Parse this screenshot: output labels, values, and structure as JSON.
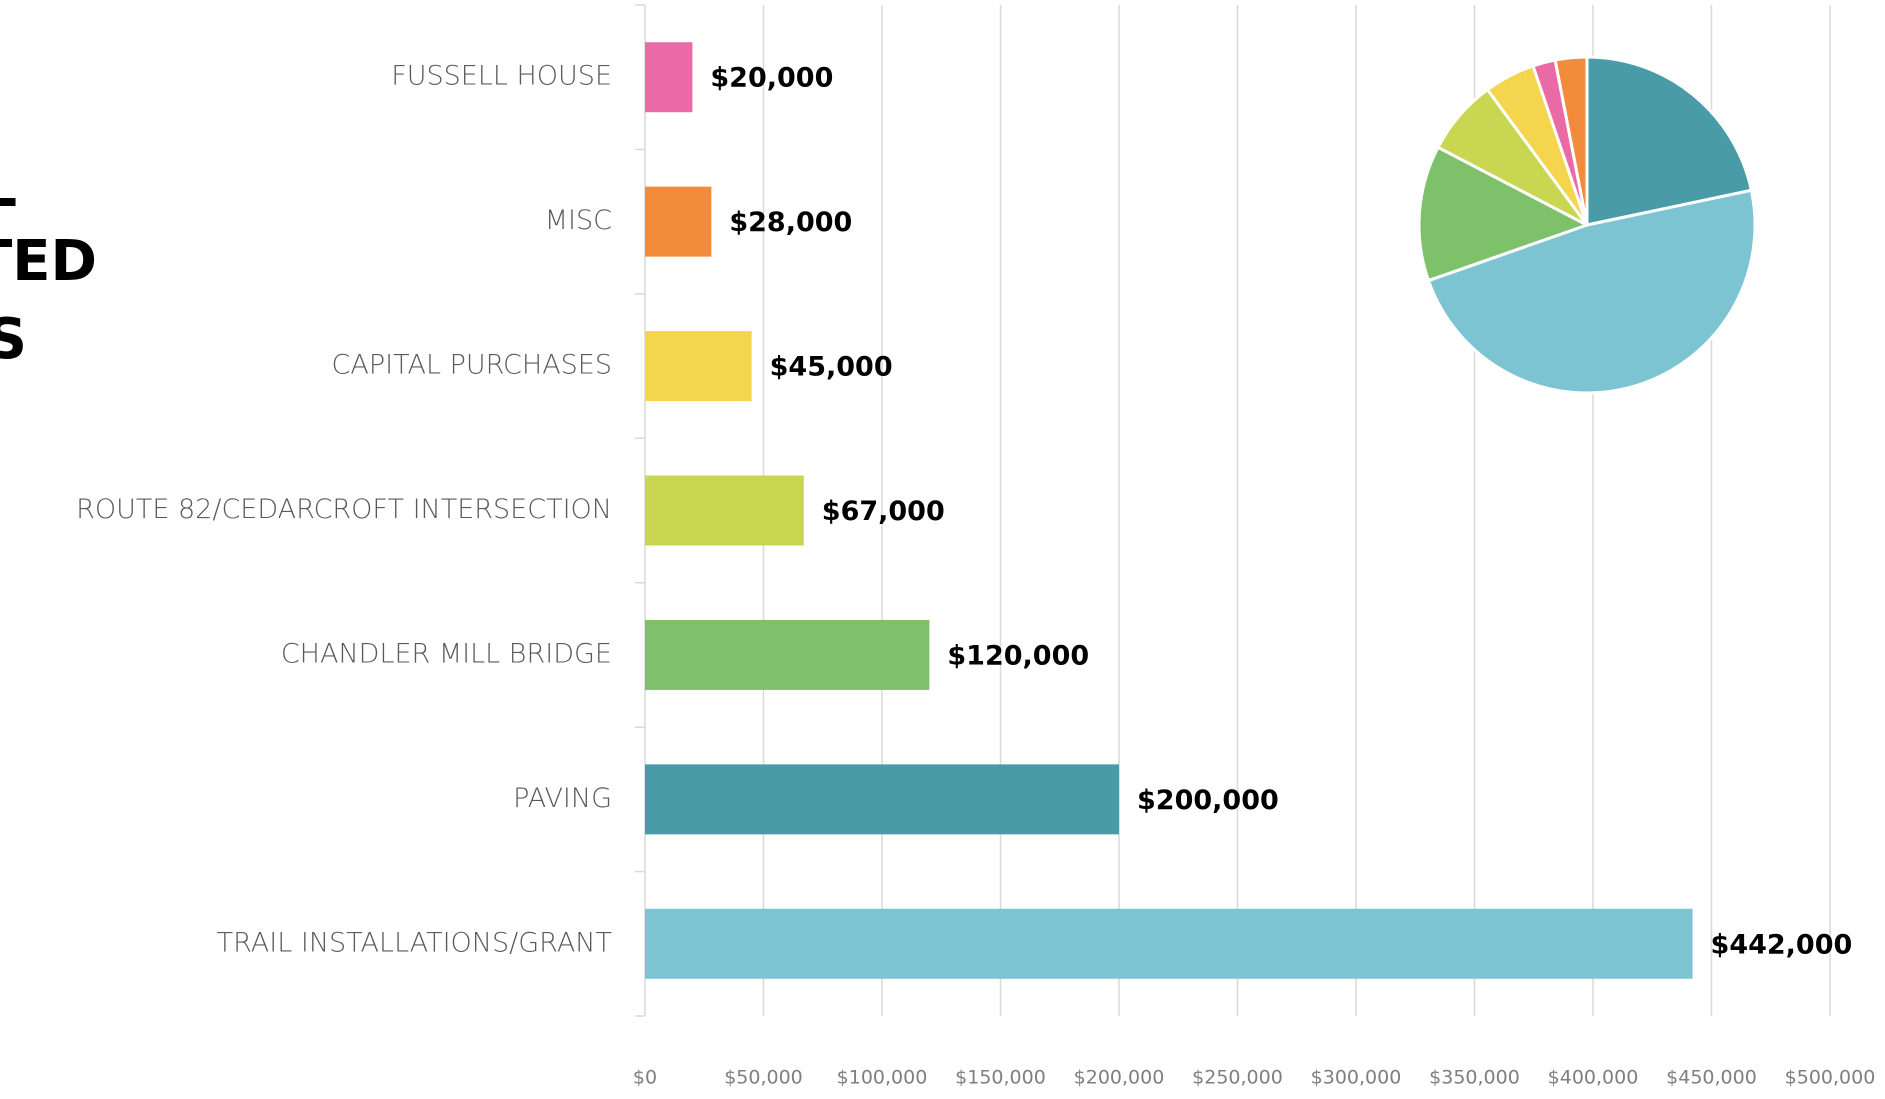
{
  "title_lines": [
    "L",
    "TED",
    "S"
  ],
  "chart_data": [
    {
      "type": "barh",
      "categories": [
        "FUSSELL HOUSE",
        "MISC",
        "CAPITAL PURCHASES",
        "ROUTE 82/CEDARCROFT INTERSECTION",
        "CHANDLER MILL BRIDGE",
        "PAVING",
        "TRAIL INSTALLATIONS/GRANT"
      ],
      "values": [
        20000,
        28000,
        45000,
        67000,
        120000,
        200000,
        442000
      ],
      "value_labels": [
        "$20,000",
        "$28,000",
        "$45,000",
        "$67,000",
        "$120,000",
        "$200,000",
        "$442,000"
      ],
      "colors": [
        "#e96aa5",
        "#f28c3c",
        "#f5d44e",
        "#c8d652",
        "#7dc26a",
        "#4a9ba8",
        "#7dc4d3"
      ],
      "xlim": [
        0,
        500000
      ],
      "xticks": [
        {
          "value": 0,
          "label": "$0"
        },
        {
          "value": 50000,
          "label": "$50,000"
        },
        {
          "value": 100000,
          "label": "$100,000"
        },
        {
          "value": 150000,
          "label": "$150,000"
        },
        {
          "value": 200000,
          "label": "$200,000"
        },
        {
          "value": 250000,
          "label": "$250,000"
        },
        {
          "value": 300000,
          "label": "$300,000"
        },
        {
          "value": 350000,
          "label": "$350,000"
        },
        {
          "value": 400000,
          "label": "$400,000"
        },
        {
          "value": 450000,
          "label": "$450,000"
        },
        {
          "value": 500000,
          "label": "$500,000"
        }
      ],
      "grid": true
    },
    {
      "type": "pie",
      "values": [
        200000,
        442000,
        120000,
        67000,
        45000,
        20000,
        28000
      ],
      "colors": [
        "#4a9ba8",
        "#7dc4d3",
        "#7dc26a",
        "#c8d652",
        "#f5d44e",
        "#e96aa5",
        "#f28c3c"
      ]
    }
  ]
}
